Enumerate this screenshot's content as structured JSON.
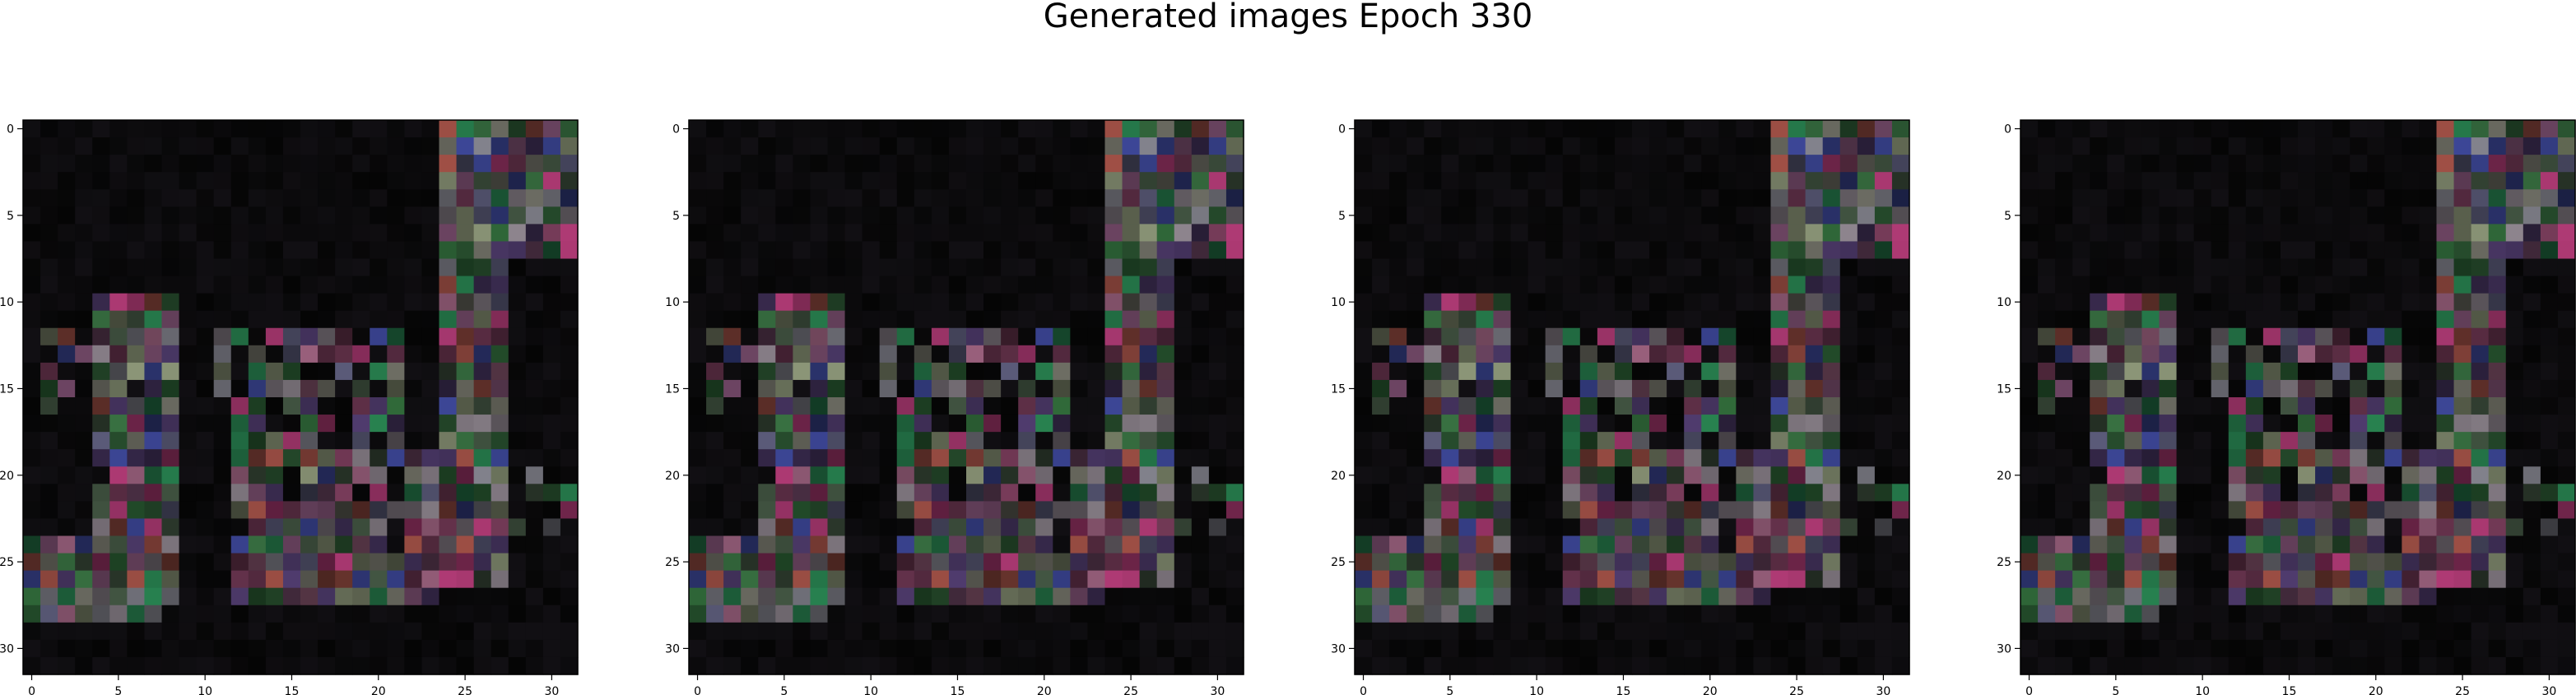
{
  "figure": {
    "title": "Generated images Epoch 330"
  },
  "chart_data": [
    {
      "type": "heatmap",
      "image_shape": [
        32,
        32,
        3
      ],
      "x_ticks": [
        "0",
        "5",
        "10",
        "15",
        "20",
        "25",
        "30"
      ],
      "y_ticks": [
        "0",
        "5",
        "10",
        "15",
        "20",
        "25",
        "30"
      ],
      "xlim": [
        -0.5,
        31.5
      ],
      "ylim": [
        31.5,
        -0.5
      ],
      "background_color": "#050505",
      "regions": [
        {
          "rows": [
            0,
            7
          ],
          "cols": [
            24,
            31
          ],
          "intensity": 0.9
        },
        {
          "rows": [
            8,
            26
          ],
          "cols": [
            24,
            27
          ],
          "intensity": 0.85
        },
        {
          "rows": [
            10,
            27
          ],
          "cols": [
            4,
            8
          ],
          "intensity": 0.8
        },
        {
          "rows": [
            12,
            17
          ],
          "cols": [
            11,
            21
          ],
          "intensity": 0.55
        },
        {
          "rows": [
            18,
            27
          ],
          "cols": [
            12,
            23
          ],
          "intensity": 0.75
        },
        {
          "rows": [
            24,
            28
          ],
          "cols": [
            0,
            7
          ],
          "intensity": 0.8
        },
        {
          "rows": [
            12,
            16
          ],
          "cols": [
            0,
            4
          ],
          "intensity": 0.3
        },
        {
          "rows": [
            20,
            23
          ],
          "cols": [
            28,
            31
          ],
          "intensity": 0.35
        }
      ]
    },
    {
      "type": "heatmap",
      "image_shape": [
        32,
        32,
        3
      ],
      "x_ticks": [
        "0",
        "5",
        "10",
        "15",
        "20",
        "25",
        "30"
      ],
      "y_ticks": [
        "0",
        "5",
        "10",
        "15",
        "20",
        "25",
        "30"
      ],
      "xlim": [
        -0.5,
        31.5
      ],
      "ylim": [
        31.5,
        -0.5
      ],
      "background_color": "#050505",
      "regions": [
        {
          "rows": [
            0,
            7
          ],
          "cols": [
            24,
            31
          ],
          "intensity": 0.9
        },
        {
          "rows": [
            8,
            26
          ],
          "cols": [
            24,
            27
          ],
          "intensity": 0.85
        },
        {
          "rows": [
            10,
            27
          ],
          "cols": [
            4,
            8
          ],
          "intensity": 0.8
        },
        {
          "rows": [
            12,
            17
          ],
          "cols": [
            11,
            21
          ],
          "intensity": 0.55
        },
        {
          "rows": [
            18,
            27
          ],
          "cols": [
            12,
            23
          ],
          "intensity": 0.75
        },
        {
          "rows": [
            24,
            28
          ],
          "cols": [
            0,
            7
          ],
          "intensity": 0.8
        },
        {
          "rows": [
            12,
            16
          ],
          "cols": [
            0,
            4
          ],
          "intensity": 0.3
        },
        {
          "rows": [
            20,
            23
          ],
          "cols": [
            28,
            31
          ],
          "intensity": 0.35
        }
      ]
    },
    {
      "type": "heatmap",
      "image_shape": [
        32,
        32,
        3
      ],
      "x_ticks": [
        "0",
        "5",
        "10",
        "15",
        "20",
        "25",
        "30"
      ],
      "y_ticks": [
        "0",
        "5",
        "10",
        "15",
        "20",
        "25",
        "30"
      ],
      "xlim": [
        -0.5,
        31.5
      ],
      "ylim": [
        31.5,
        -0.5
      ],
      "background_color": "#050505",
      "regions": [
        {
          "rows": [
            0,
            7
          ],
          "cols": [
            24,
            31
          ],
          "intensity": 0.9
        },
        {
          "rows": [
            8,
            26
          ],
          "cols": [
            24,
            27
          ],
          "intensity": 0.85
        },
        {
          "rows": [
            10,
            27
          ],
          "cols": [
            4,
            8
          ],
          "intensity": 0.8
        },
        {
          "rows": [
            12,
            17
          ],
          "cols": [
            11,
            21
          ],
          "intensity": 0.55
        },
        {
          "rows": [
            18,
            27
          ],
          "cols": [
            12,
            23
          ],
          "intensity": 0.75
        },
        {
          "rows": [
            24,
            28
          ],
          "cols": [
            0,
            7
          ],
          "intensity": 0.8
        },
        {
          "rows": [
            12,
            16
          ],
          "cols": [
            0,
            4
          ],
          "intensity": 0.3
        },
        {
          "rows": [
            20,
            23
          ],
          "cols": [
            28,
            31
          ],
          "intensity": 0.35
        }
      ]
    },
    {
      "type": "heatmap",
      "image_shape": [
        32,
        32,
        3
      ],
      "x_ticks": [
        "0",
        "5",
        "10",
        "15",
        "20",
        "25",
        "30"
      ],
      "y_ticks": [
        "0",
        "5",
        "10",
        "15",
        "20",
        "25",
        "30"
      ],
      "xlim": [
        -0.5,
        31.5
      ],
      "ylim": [
        31.5,
        -0.5
      ],
      "background_color": "#050505",
      "regions": [
        {
          "rows": [
            0,
            7
          ],
          "cols": [
            24,
            31
          ],
          "intensity": 0.9
        },
        {
          "rows": [
            8,
            26
          ],
          "cols": [
            24,
            27
          ],
          "intensity": 0.85
        },
        {
          "rows": [
            10,
            27
          ],
          "cols": [
            4,
            8
          ],
          "intensity": 0.8
        },
        {
          "rows": [
            12,
            17
          ],
          "cols": [
            11,
            21
          ],
          "intensity": 0.55
        },
        {
          "rows": [
            18,
            27
          ],
          "cols": [
            12,
            23
          ],
          "intensity": 0.75
        },
        {
          "rows": [
            24,
            28
          ],
          "cols": [
            0,
            7
          ],
          "intensity": 0.8
        },
        {
          "rows": [
            12,
            16
          ],
          "cols": [
            0,
            4
          ],
          "intensity": 0.3
        },
        {
          "rows": [
            20,
            23
          ],
          "cols": [
            28,
            31
          ],
          "intensity": 0.35
        }
      ]
    }
  ]
}
